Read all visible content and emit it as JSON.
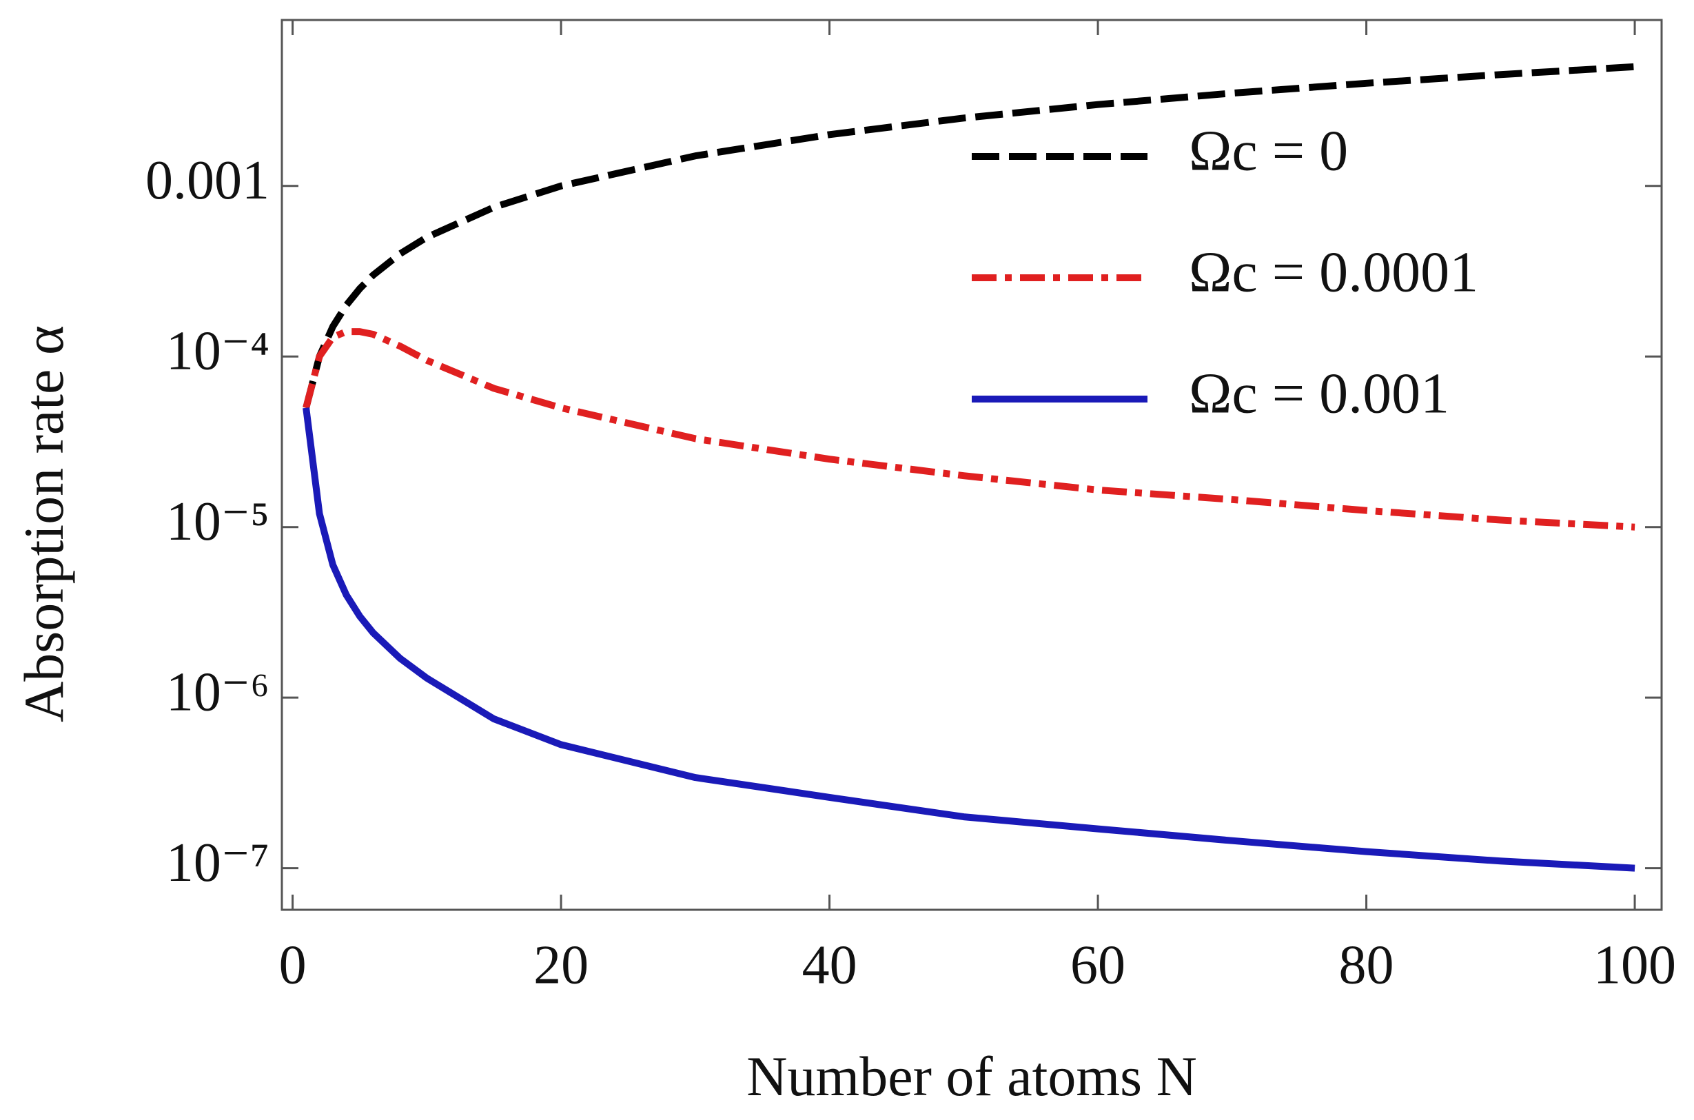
{
  "chart_data": {
    "type": "line",
    "xlabel": "Number of atoms N",
    "ylabel": "Absorption rate α",
    "yscale": "log",
    "xlim": [
      -0.8,
      102
    ],
    "ylim": [
      5.7e-08,
      0.0094
    ],
    "xticks": [
      0,
      20,
      40,
      60,
      80,
      100
    ],
    "yticks": [
      0.001,
      {
        "value": 0.0001,
        "label": "10⁻⁴"
      },
      {
        "value": 1e-05,
        "label": "10⁻⁵"
      },
      {
        "value": 1e-06,
        "label": "10⁻⁶"
      },
      {
        "value": 1e-07,
        "label": "10⁻⁷"
      }
    ],
    "legend": "upper right",
    "x": [
      1,
      2,
      3,
      4,
      5,
      6,
      8,
      10,
      15,
      20,
      30,
      40,
      50,
      60,
      70,
      80,
      90,
      100
    ],
    "series": [
      {
        "name": "Ωc = 0",
        "color": "#000000",
        "linestyle": "dashed",
        "values": [
          5e-05,
          0.0001,
          0.00015,
          0.0002,
          0.00025,
          0.0003,
          0.0004,
          0.0005,
          0.00075,
          0.001,
          0.0015,
          0.002,
          0.0025,
          0.003,
          0.0035,
          0.004,
          0.0045,
          0.005
        ]
      },
      {
        "name": "Ωc = 0.0001",
        "color": "#e02020",
        "linestyle": "dashdot",
        "values": [
          5e-05,
          0.0001,
          0.00013,
          0.00014,
          0.00014,
          0.000135,
          0.000115,
          9.5e-05,
          6.5e-05,
          5e-05,
          3.3e-05,
          2.5e-05,
          2e-05,
          1.65e-05,
          1.45e-05,
          1.25e-05,
          1.1e-05,
          1e-05
        ]
      },
      {
        "name": "Ωc = 0.001",
        "color": "#1a1ab8",
        "linestyle": "solid",
        "values": [
          5e-05,
          1.2e-05,
          6e-06,
          4e-06,
          3e-06,
          2.4e-06,
          1.7e-06,
          1.3e-06,
          7.5e-07,
          5.3e-07,
          3.4e-07,
          2.6e-07,
          2e-07,
          1.7e-07,
          1.45e-07,
          1.25e-07,
          1.1e-07,
          1e-07
        ]
      }
    ]
  }
}
